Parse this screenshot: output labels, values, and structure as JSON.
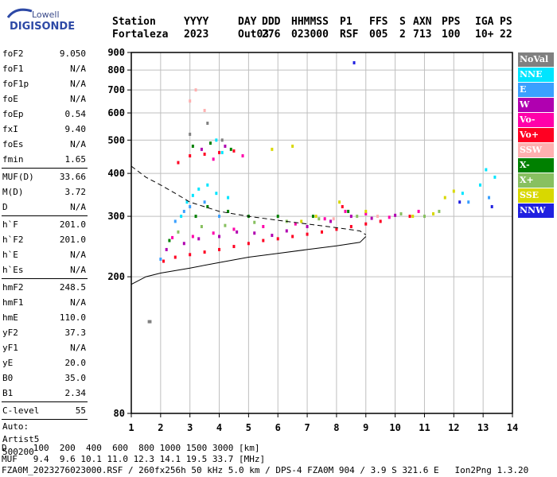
{
  "brand": {
    "line1": "Lowell",
    "line2": "DIGISONDE"
  },
  "header": {
    "labels": [
      "Station",
      "YYYY",
      "DAY",
      "DDD",
      "HHMMSS",
      "P1",
      "FFS",
      "S",
      "AXN",
      "PPS",
      "IGA",
      "PS"
    ],
    "values": [
      "Fortaleza",
      "2023",
      "Out03",
      "276",
      "023000",
      "RSF",
      "005",
      "2",
      "713",
      "100",
      "10+",
      "22"
    ]
  },
  "params": {
    "group1": [
      [
        "foF2",
        "9.050"
      ],
      [
        "foF1",
        "N/A"
      ],
      [
        "foF1p",
        "N/A"
      ],
      [
        "foE",
        "N/A"
      ],
      [
        "foEp",
        "0.54"
      ],
      [
        "fxI",
        "9.40"
      ],
      [
        "foEs",
        "N/A"
      ],
      [
        "fmin",
        "1.65"
      ]
    ],
    "group2": [
      [
        "MUF(D)",
        "33.66"
      ],
      [
        "M(D)",
        "3.72"
      ],
      [
        "D",
        "N/A"
      ]
    ],
    "group3": [
      [
        "h`F",
        "201.0"
      ],
      [
        "h`F2",
        "201.0"
      ],
      [
        "h`E",
        "N/A"
      ],
      [
        "h`Es",
        "N/A"
      ]
    ],
    "group4": [
      [
        "hmF2",
        "248.5"
      ],
      [
        "hmF1",
        "N/A"
      ],
      [
        "hmE",
        "110.0"
      ],
      [
        "yF2",
        "37.3"
      ],
      [
        "yF1",
        "N/A"
      ],
      [
        "yE",
        "20.0"
      ],
      [
        "B0",
        "35.0"
      ],
      [
        "B1",
        "2.34"
      ]
    ],
    "group5": [
      [
        "C-level",
        "55"
      ]
    ],
    "auto": [
      "Auto:",
      "Artist5",
      "500200"
    ]
  },
  "legend": [
    {
      "label": "NoVal",
      "color": "#808080"
    },
    {
      "label": "NNE",
      "color": "#00e5ff"
    },
    {
      "label": "E",
      "color": "#3aa0ff"
    },
    {
      "label": "W",
      "color": "#b000b0"
    },
    {
      "label": "Vo-",
      "color": "#ff00aa"
    },
    {
      "label": "Vo+",
      "color": "#ff0022"
    },
    {
      "label": "SSW",
      "color": "#ffb0b0"
    },
    {
      "label": "X-",
      "color": "#008000"
    },
    {
      "label": "X+",
      "color": "#88c060"
    },
    {
      "label": "SSE",
      "color": "#d8d800"
    },
    {
      "label": "NNW",
      "color": "#2020e0"
    }
  ],
  "chart_data": {
    "type": "scatter",
    "xlabel": "",
    "ylabel": "",
    "xlim": [
      1,
      14
    ],
    "ylim": [
      80,
      900
    ],
    "y_scale": "log",
    "x_ticks": [
      1,
      2,
      3,
      4,
      5,
      6,
      7,
      8,
      9,
      10,
      11,
      12,
      13,
      14
    ],
    "y_ticks": [
      80,
      200,
      300,
      400,
      500,
      600,
      700,
      800,
      900
    ],
    "grid": true,
    "legend_position": "right",
    "series": [
      {
        "color": "#ff0022",
        "points": [
          [
            2.1,
            222
          ],
          [
            2.5,
            228
          ],
          [
            3.0,
            232
          ],
          [
            3.5,
            236
          ],
          [
            4.0,
            240
          ],
          [
            4.5,
            245
          ],
          [
            5.0,
            250
          ],
          [
            5.5,
            255
          ],
          [
            6.0,
            258
          ],
          [
            6.5,
            262
          ],
          [
            7.0,
            266
          ],
          [
            7.5,
            270
          ],
          [
            8.0,
            275
          ],
          [
            8.5,
            280
          ],
          [
            9.0,
            285
          ],
          [
            3.0,
            450
          ],
          [
            3.5,
            455
          ],
          [
            4.0,
            460
          ],
          [
            4.5,
            465
          ],
          [
            2.6,
            430
          ],
          [
            8.2,
            320
          ],
          [
            9.5,
            290
          ],
          [
            10.5,
            300
          ]
        ]
      },
      {
        "color": "#b000b0",
        "points": [
          [
            2.2,
            240
          ],
          [
            2.8,
            250
          ],
          [
            3.3,
            258
          ],
          [
            4.0,
            262
          ],
          [
            4.6,
            270
          ],
          [
            5.2,
            268
          ],
          [
            5.8,
            264
          ],
          [
            6.3,
            272
          ],
          [
            7.0,
            280
          ],
          [
            7.8,
            290
          ],
          [
            8.5,
            300
          ],
          [
            9.2,
            296
          ],
          [
            10.0,
            302
          ],
          [
            3.4,
            470
          ],
          [
            4.2,
            480
          ]
        ]
      },
      {
        "color": "#ff00aa",
        "points": [
          [
            2.4,
            260
          ],
          [
            3.1,
            262
          ],
          [
            3.8,
            268
          ],
          [
            4.5,
            275
          ],
          [
            5.5,
            280
          ],
          [
            6.6,
            285
          ],
          [
            7.6,
            295
          ],
          [
            8.3,
            310
          ],
          [
            9.0,
            305
          ],
          [
            9.8,
            298
          ],
          [
            10.8,
            310
          ],
          [
            4.8,
            450
          ],
          [
            3.8,
            440
          ]
        ]
      },
      {
        "color": "#00e5ff",
        "points": [
          [
            2.9,
            330
          ],
          [
            3.1,
            345
          ],
          [
            3.3,
            360
          ],
          [
            3.6,
            370
          ],
          [
            3.9,
            350
          ],
          [
            4.3,
            340
          ],
          [
            2.7,
            300
          ],
          [
            4.1,
            460
          ],
          [
            3.9,
            500
          ],
          [
            12.3,
            350
          ],
          [
            12.9,
            370
          ],
          [
            13.1,
            410
          ],
          [
            13.4,
            390
          ]
        ]
      },
      {
        "color": "#3aa0ff",
        "points": [
          [
            2.8,
            310
          ],
          [
            3.0,
            320
          ],
          [
            3.5,
            330
          ],
          [
            4.0,
            300
          ],
          [
            2.5,
            290
          ],
          [
            12.5,
            330
          ],
          [
            13.2,
            340
          ],
          [
            2.0,
            225
          ]
        ]
      },
      {
        "color": "#008000",
        "points": [
          [
            2.3,
            255
          ],
          [
            3.2,
            300
          ],
          [
            3.6,
            320
          ],
          [
            4.3,
            310
          ],
          [
            5.0,
            300
          ],
          [
            6.0,
            300
          ],
          [
            7.2,
            300
          ],
          [
            8.4,
            310
          ],
          [
            3.1,
            480
          ],
          [
            3.7,
            490
          ],
          [
            4.4,
            470
          ]
        ]
      },
      {
        "color": "#88c060",
        "points": [
          [
            2.6,
            270
          ],
          [
            3.4,
            280
          ],
          [
            4.2,
            282
          ],
          [
            5.2,
            288
          ],
          [
            6.3,
            290
          ],
          [
            7.4,
            295
          ],
          [
            8.7,
            300
          ],
          [
            10.2,
            305
          ],
          [
            11.0,
            300
          ],
          [
            11.5,
            310
          ]
        ]
      },
      {
        "color": "#d8d800",
        "points": [
          [
            6.8,
            290
          ],
          [
            7.3,
            300
          ],
          [
            8.1,
            330
          ],
          [
            9.0,
            310
          ],
          [
            10.6,
            300
          ],
          [
            11.3,
            305
          ],
          [
            11.7,
            340
          ],
          [
            12.0,
            355
          ],
          [
            6.5,
            480
          ],
          [
            5.8,
            470
          ]
        ]
      },
      {
        "color": "#ffb0b0",
        "points": [
          [
            3.0,
            650
          ],
          [
            3.2,
            700
          ],
          [
            3.5,
            610
          ],
          [
            7.9,
            295
          ],
          [
            9.4,
            300
          ]
        ]
      },
      {
        "color": "#2020e0",
        "points": [
          [
            8.6,
            840
          ],
          [
            12.2,
            330
          ],
          [
            13.3,
            320
          ]
        ]
      },
      {
        "color": "#808080",
        "points": [
          [
            3.0,
            520
          ],
          [
            3.6,
            560
          ],
          [
            4.1,
            500
          ],
          [
            1.6,
            148
          ],
          [
            1.65,
            148
          ]
        ]
      }
    ],
    "curves": {
      "dashed": [
        [
          1.0,
          420
        ],
        [
          1.5,
          390
        ],
        [
          2.0,
          370
        ],
        [
          2.5,
          350
        ],
        [
          3.0,
          330
        ],
        [
          3.5,
          320
        ],
        [
          4.0,
          310
        ],
        [
          5.0,
          300
        ],
        [
          6.0,
          292
        ],
        [
          7.0,
          285
        ],
        [
          8.0,
          278
        ],
        [
          8.8,
          272
        ],
        [
          9.0,
          265
        ]
      ],
      "solid": [
        [
          1.0,
          190
        ],
        [
          1.5,
          200
        ],
        [
          2.0,
          205
        ],
        [
          3.0,
          212
        ],
        [
          4.0,
          220
        ],
        [
          5.0,
          228
        ],
        [
          6.0,
          234
        ],
        [
          7.0,
          240
        ],
        [
          8.0,
          246
        ],
        [
          8.8,
          252
        ],
        [
          9.0,
          262
        ]
      ]
    }
  },
  "footer": {
    "row1": "D     100  200  400  600  800 1000 1500 3000 [km]",
    "row2": "MUF   9.4  9.6 10.1 11.0 12.3 14.1 19.5 33.7 [MHz]",
    "row3": "FZA0M_2023276023000.RSF / 260fx256h 50 kHz 5.0 km / DPS-4 FZA0M 904 / 3.9 S 321.6 E   Ion2Png 1.3.20"
  }
}
